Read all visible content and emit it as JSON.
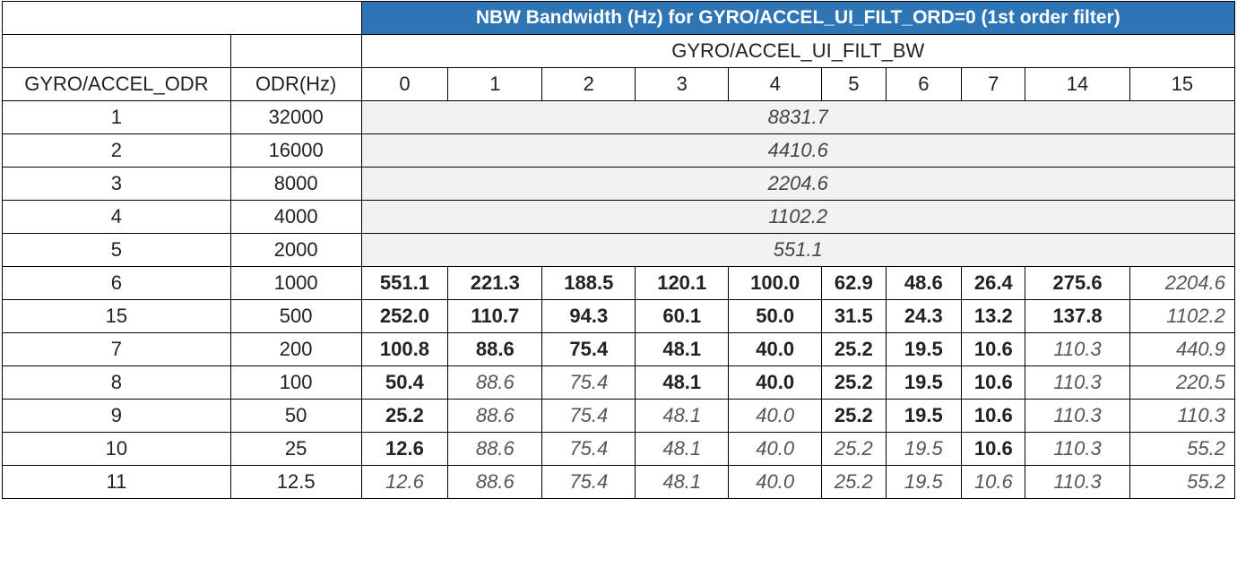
{
  "title": "NBW Bandwidth (Hz) for GYRO/ACCEL_UI_FILT_ORD=0 (1st order filter)",
  "bw_header": "GYRO/ACCEL_UI_FILT_BW",
  "col_headers": [
    "GYRO/ACCEL_ODR",
    "ODR(Hz)"
  ],
  "bw_values": [
    "0",
    "1",
    "2",
    "3",
    "4",
    "5",
    "6",
    "7",
    "14",
    "15"
  ],
  "merged_rows": [
    {
      "odr": "1",
      "hz": "32000",
      "value": "8831.7"
    },
    {
      "odr": "2",
      "hz": "16000",
      "value": "4410.6"
    },
    {
      "odr": "3",
      "hz": "8000",
      "value": "2204.6"
    },
    {
      "odr": "4",
      "hz": "4000",
      "value": "1102.2"
    },
    {
      "odr": "5",
      "hz": "2000",
      "value": "551.1"
    }
  ],
  "rows": [
    {
      "odr": "6",
      "hz": "1000",
      "cells": [
        {
          "v": "551.1",
          "b": true
        },
        {
          "v": "221.3",
          "b": true
        },
        {
          "v": "188.5",
          "b": true
        },
        {
          "v": "120.1",
          "b": true
        },
        {
          "v": "100.0",
          "b": true
        },
        {
          "v": "62.9",
          "b": true
        },
        {
          "v": "48.6",
          "b": true
        },
        {
          "v": "26.4",
          "b": true
        },
        {
          "v": "275.6",
          "b": true
        },
        {
          "v": "2204.6",
          "b": false
        }
      ]
    },
    {
      "odr": "15",
      "hz": "500",
      "cells": [
        {
          "v": "252.0",
          "b": true
        },
        {
          "v": "110.7",
          "b": true
        },
        {
          "v": "94.3",
          "b": true
        },
        {
          "v": "60.1",
          "b": true
        },
        {
          "v": "50.0",
          "b": true
        },
        {
          "v": "31.5",
          "b": true
        },
        {
          "v": "24.3",
          "b": true
        },
        {
          "v": "13.2",
          "b": true
        },
        {
          "v": "137.8",
          "b": true
        },
        {
          "v": "1102.2",
          "b": false
        }
      ]
    },
    {
      "odr": "7",
      "hz": "200",
      "cells": [
        {
          "v": "100.8",
          "b": true
        },
        {
          "v": "88.6",
          "b": true
        },
        {
          "v": "75.4",
          "b": true
        },
        {
          "v": "48.1",
          "b": true
        },
        {
          "v": "40.0",
          "b": true
        },
        {
          "v": "25.2",
          "b": true
        },
        {
          "v": "19.5",
          "b": true
        },
        {
          "v": "10.6",
          "b": true
        },
        {
          "v": "110.3",
          "b": false
        },
        {
          "v": "440.9",
          "b": false
        }
      ]
    },
    {
      "odr": "8",
      "hz": "100",
      "cells": [
        {
          "v": "50.4",
          "b": true
        },
        {
          "v": "88.6",
          "b": false
        },
        {
          "v": "75.4",
          "b": false
        },
        {
          "v": "48.1",
          "b": true
        },
        {
          "v": "40.0",
          "b": true
        },
        {
          "v": "25.2",
          "b": true
        },
        {
          "v": "19.5",
          "b": true
        },
        {
          "v": "10.6",
          "b": true
        },
        {
          "v": "110.3",
          "b": false
        },
        {
          "v": "220.5",
          "b": false
        }
      ]
    },
    {
      "odr": "9",
      "hz": "50",
      "cells": [
        {
          "v": "25.2",
          "b": true
        },
        {
          "v": "88.6",
          "b": false
        },
        {
          "v": "75.4",
          "b": false
        },
        {
          "v": "48.1",
          "b": false
        },
        {
          "v": "40.0",
          "b": false
        },
        {
          "v": "25.2",
          "b": true
        },
        {
          "v": "19.5",
          "b": true
        },
        {
          "v": "10.6",
          "b": true
        },
        {
          "v": "110.3",
          "b": false
        },
        {
          "v": "110.3",
          "b": false
        }
      ]
    },
    {
      "odr": "10",
      "hz": "25",
      "cells": [
        {
          "v": "12.6",
          "b": true
        },
        {
          "v": "88.6",
          "b": false
        },
        {
          "v": "75.4",
          "b": false
        },
        {
          "v": "48.1",
          "b": false
        },
        {
          "v": "40.0",
          "b": false
        },
        {
          "v": "25.2",
          "b": false
        },
        {
          "v": "19.5",
          "b": false
        },
        {
          "v": "10.6",
          "b": true
        },
        {
          "v": "110.3",
          "b": false
        },
        {
          "v": "55.2",
          "b": false
        }
      ]
    },
    {
      "odr": "11",
      "hz": "12.5",
      "cells": [
        {
          "v": "12.6",
          "b": false
        },
        {
          "v": "88.6",
          "b": false
        },
        {
          "v": "75.4",
          "b": false
        },
        {
          "v": "48.1",
          "b": false
        },
        {
          "v": "40.0",
          "b": false
        },
        {
          "v": "25.2",
          "b": false
        },
        {
          "v": "19.5",
          "b": false
        },
        {
          "v": "10.6",
          "b": false
        },
        {
          "v": "110.3",
          "b": false
        },
        {
          "v": "55.2",
          "b": false
        }
      ]
    }
  ],
  "colors": {
    "title_bg": "#2e75b6",
    "merged_bg": "#f2f2f2",
    "border": "#000000"
  }
}
